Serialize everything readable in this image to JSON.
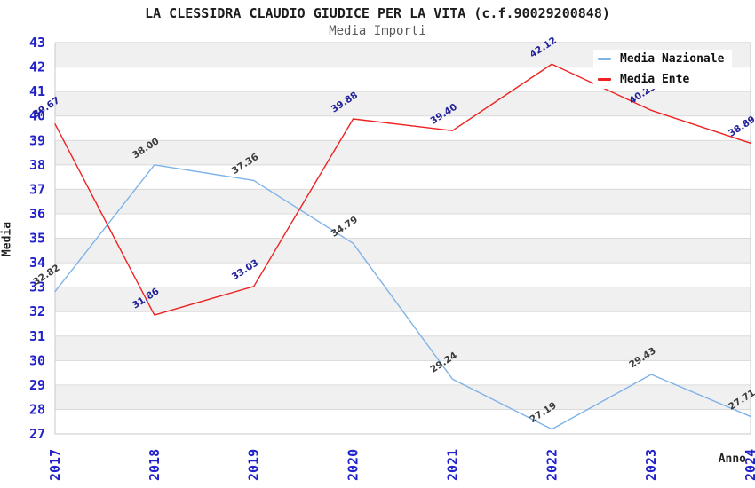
{
  "header": {
    "title": "LA CLESSIDRA CLAUDIO GIUDICE PER LA VITA (c.f.90029200848)",
    "subtitle": "Media Importi"
  },
  "chart_data": {
    "type": "line",
    "categories": [
      "2017",
      "2018",
      "2019",
      "2020",
      "2021",
      "2022",
      "2023",
      "2024"
    ],
    "series": [
      {
        "name": "Media Nazionale",
        "color": "#7fb3e8",
        "label_color": "#3c3c3c",
        "values": [
          32.82,
          38.0,
          37.36,
          34.79,
          29.24,
          27.19,
          29.43,
          27.71
        ]
      },
      {
        "name": "Media Ente",
        "color": "#ee2222",
        "label_color": "#22229a",
        "values": [
          39.67,
          31.86,
          33.03,
          39.88,
          39.4,
          42.12,
          40.23,
          38.89
        ]
      }
    ],
    "xlabel": "Anno",
    "ylabel": "Media",
    "ylim": [
      27,
      43
    ],
    "ytick_step": 1,
    "grid": "horizontal-bands",
    "legend_position": "top-right",
    "axis_tick_color": "#2222cc",
    "band_color": "#f0f0f0",
    "gridline_color": "#dadada",
    "plot_border_color": "#c9c9c9"
  }
}
